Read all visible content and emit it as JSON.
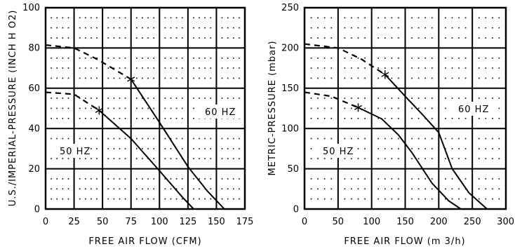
{
  "chart_data": [
    {
      "type": "line",
      "xlabel": "FREE AIR FLOW (CFM)",
      "ylabel": "U.S./IMPERIAL-PRESSURE (INCH H O2)",
      "xlim": [
        0,
        175
      ],
      "ylim": [
        0,
        100
      ],
      "x_ticks": [
        "0",
        "25",
        "50",
        "75",
        "100",
        "125",
        "150",
        "175"
      ],
      "y_ticks": [
        "0",
        "20",
        "40",
        "60",
        "80",
        "100"
      ],
      "grid": true,
      "series": [
        {
          "name": "60 HZ",
          "dashed_points": [
            [
              0,
              81.5
            ],
            [
              25,
              80
            ],
            [
              45,
              74.5
            ],
            [
              75,
              64.5
            ]
          ],
          "solid_points": [
            [
              75,
              64.5
            ],
            [
              100,
              43
            ],
            [
              125,
              21
            ],
            [
              142,
              9
            ],
            [
              157,
              0
            ]
          ],
          "marker": [
            75,
            64.5
          ]
        },
        {
          "name": "50 HZ",
          "dashed_points": [
            [
              0,
              58
            ],
            [
              25,
              57
            ],
            [
              47,
              49
            ]
          ],
          "solid_points": [
            [
              47,
              49
            ],
            [
              75,
              35
            ],
            [
              100,
              19
            ],
            [
              120,
              6
            ],
            [
              130,
              0
            ]
          ],
          "marker": [
            47,
            49
          ]
        }
      ]
    },
    {
      "type": "line",
      "xlabel": "FREE AIR FLOW (m 3/h)",
      "ylabel": "METRIC-PRESSURE (mbar)",
      "xlim": [
        0,
        300
      ],
      "ylim": [
        0,
        250
      ],
      "x_ticks": [
        "0",
        "50",
        "100",
        "150",
        "200",
        "250",
        "300"
      ],
      "y_ticks": [
        "0",
        "50",
        "100",
        "150",
        "200",
        "250"
      ],
      "grid": true,
      "series": [
        {
          "name": "60 HZ",
          "dashed_points": [
            [
              0,
              205
            ],
            [
              50,
              200
            ],
            [
              85,
              186
            ],
            [
              120,
              167
            ]
          ],
          "solid_points": [
            [
              120,
              167
            ],
            [
              150,
              140
            ],
            [
              175,
              118
            ],
            [
              200,
              95
            ],
            [
              220,
              50
            ],
            [
              245,
              20
            ],
            [
              272,
              0
            ]
          ],
          "marker": [
            120,
            167
          ]
        },
        {
          "name": "50 HZ",
          "dashed_points": [
            [
              0,
              145
            ],
            [
              40,
              140
            ],
            [
              80,
              126
            ]
          ],
          "solid_points": [
            [
              80,
              126
            ],
            [
              115,
              112
            ],
            [
              140,
              92
            ],
            [
              160,
              70
            ],
            [
              190,
              32
            ],
            [
              215,
              10
            ],
            [
              233,
              0
            ]
          ],
          "marker": [
            80,
            126
          ]
        }
      ]
    }
  ]
}
